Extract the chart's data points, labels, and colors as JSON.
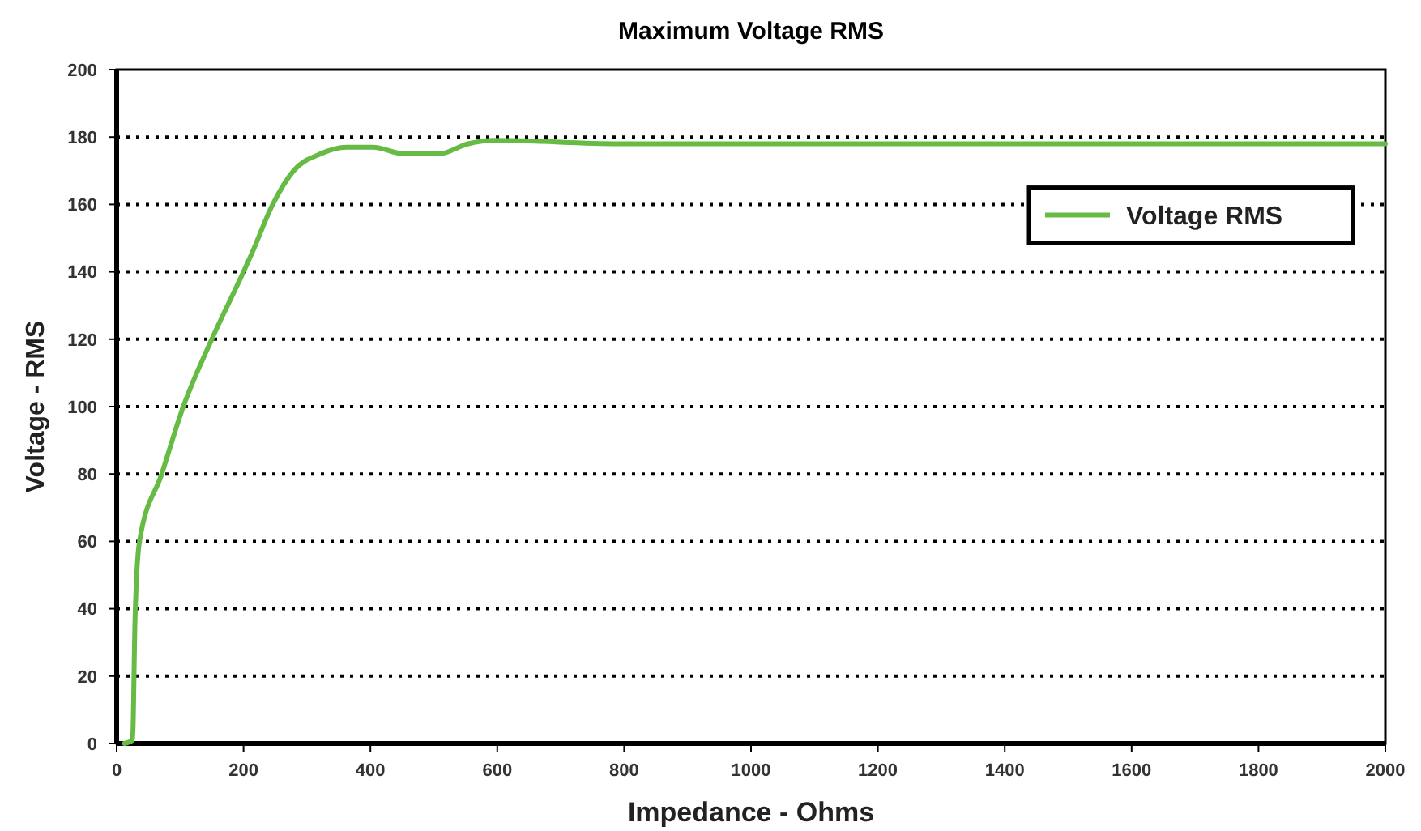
{
  "chart_data": {
    "type": "line",
    "title": "Maximum Voltage RMS",
    "xlabel": "Impedance - Ohms",
    "ylabel": "Voltage - RMS",
    "xlim": [
      0,
      2000
    ],
    "xticks": [
      0,
      200,
      400,
      600,
      800,
      1000,
      1200,
      1400,
      1600,
      1800,
      2000
    ],
    "ylim": [
      0,
      200
    ],
    "yticks": [
      0,
      20,
      40,
      60,
      80,
      100,
      120,
      140,
      160,
      180,
      200
    ],
    "grid": "y",
    "legend": "top right",
    "marker": "none",
    "line_style": "solid",
    "series": [
      {
        "name": "Voltage RMS",
        "color": "#66bb44",
        "x": [
          12,
          25,
          29,
          36,
          71,
          105,
          150,
          200,
          212,
          246,
          279,
          321,
          362,
          404,
          454,
          508,
          554,
          596,
          800,
          1000,
          1400,
          2000
        ],
        "values": [
          0,
          1,
          37,
          60,
          80,
          100,
          120,
          140,
          145,
          160,
          170,
          175,
          177,
          177,
          175,
          175,
          178,
          179,
          178,
          178,
          178,
          178
        ]
      }
    ]
  }
}
